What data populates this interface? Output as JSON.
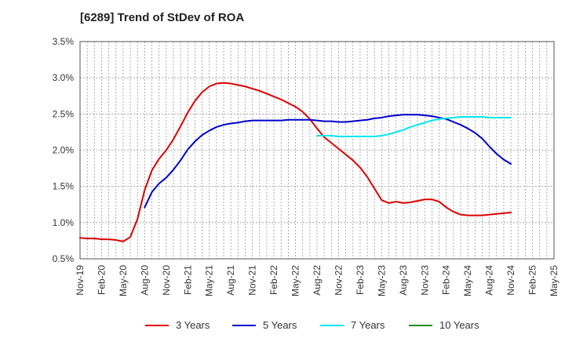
{
  "chart_data": {
    "type": "line",
    "title": "[6289]  Trend of StDev of ROA",
    "xlabel": "",
    "ylabel": "",
    "ylim": [
      0.5,
      3.5
    ],
    "y_ticks": [
      0.5,
      1.0,
      1.5,
      2.0,
      2.5,
      3.0,
      3.5
    ],
    "y_tick_labels": [
      "0.5%",
      "1.0%",
      "1.5%",
      "2.0%",
      "2.5%",
      "3.0%",
      "3.5%"
    ],
    "x_tick_labels": [
      "Nov-19",
      "Feb-20",
      "May-20",
      "Aug-20",
      "Nov-20",
      "Feb-21",
      "May-21",
      "Aug-21",
      "Nov-21",
      "Feb-22",
      "May-22",
      "Aug-22",
      "Nov-22",
      "Feb-23",
      "May-23",
      "Aug-23",
      "Nov-23",
      "Feb-24",
      "May-24",
      "Aug-24",
      "Nov-24",
      "Feb-25",
      "May-25"
    ],
    "grid": true,
    "legend_position": "bottom",
    "series": [
      {
        "name": "3 Years",
        "color": "#dd0000",
        "points": [
          [
            "Nov-19",
            0.79
          ],
          [
            "Dec-19",
            0.78
          ],
          [
            "Jan-20",
            0.78
          ],
          [
            "Feb-20",
            0.77
          ],
          [
            "Mar-20",
            0.77
          ],
          [
            "Apr-20",
            0.76
          ],
          [
            "May-20",
            0.74
          ],
          [
            "Jun-20",
            0.8
          ],
          [
            "Jul-20",
            1.05
          ],
          [
            "Aug-20",
            1.45
          ],
          [
            "Sep-20",
            1.72
          ],
          [
            "Oct-20",
            1.88
          ],
          [
            "Nov-20",
            2.0
          ],
          [
            "Dec-20",
            2.15
          ],
          [
            "Jan-21",
            2.33
          ],
          [
            "Feb-21",
            2.52
          ],
          [
            "Mar-21",
            2.68
          ],
          [
            "Apr-21",
            2.8
          ],
          [
            "May-21",
            2.88
          ],
          [
            "Jun-21",
            2.92
          ],
          [
            "Jul-21",
            2.93
          ],
          [
            "Aug-21",
            2.92
          ],
          [
            "Sep-21",
            2.9
          ],
          [
            "Oct-21",
            2.88
          ],
          [
            "Nov-21",
            2.85
          ],
          [
            "Dec-21",
            2.82
          ],
          [
            "Jan-22",
            2.78
          ],
          [
            "Feb-22",
            2.74
          ],
          [
            "Mar-22",
            2.7
          ],
          [
            "Apr-22",
            2.65
          ],
          [
            "May-22",
            2.6
          ],
          [
            "Jun-22",
            2.53
          ],
          [
            "Jul-22",
            2.43
          ],
          [
            "Aug-22",
            2.3
          ],
          [
            "Sep-22",
            2.18
          ],
          [
            "Oct-22",
            2.1
          ],
          [
            "Nov-22",
            2.02
          ],
          [
            "Dec-22",
            1.94
          ],
          [
            "Jan-23",
            1.86
          ],
          [
            "Feb-23",
            1.76
          ],
          [
            "Mar-23",
            1.63
          ],
          [
            "Apr-23",
            1.47
          ],
          [
            "May-23",
            1.31
          ],
          [
            "Jun-23",
            1.27
          ],
          [
            "Jul-23",
            1.29
          ],
          [
            "Aug-23",
            1.27
          ],
          [
            "Sep-23",
            1.28
          ],
          [
            "Oct-23",
            1.3
          ],
          [
            "Nov-23",
            1.32
          ],
          [
            "Dec-23",
            1.32
          ],
          [
            "Jan-24",
            1.29
          ],
          [
            "Feb-24",
            1.21
          ],
          [
            "Mar-24",
            1.15
          ],
          [
            "Apr-24",
            1.11
          ],
          [
            "May-24",
            1.1
          ],
          [
            "Jun-24",
            1.1
          ],
          [
            "Jul-24",
            1.1
          ],
          [
            "Aug-24",
            1.11
          ],
          [
            "Sep-24",
            1.12
          ],
          [
            "Oct-24",
            1.13
          ],
          [
            "Nov-24",
            1.14
          ]
        ]
      },
      {
        "name": "5 Years",
        "color": "#0000cc",
        "points": [
          [
            "Aug-20",
            1.21
          ],
          [
            "Sep-20",
            1.42
          ],
          [
            "Oct-20",
            1.54
          ],
          [
            "Nov-20",
            1.62
          ],
          [
            "Dec-20",
            1.73
          ],
          [
            "Jan-21",
            1.86
          ],
          [
            "Feb-21",
            2.01
          ],
          [
            "Mar-21",
            2.12
          ],
          [
            "Apr-21",
            2.21
          ],
          [
            "May-21",
            2.27
          ],
          [
            "Jun-21",
            2.32
          ],
          [
            "Jul-21",
            2.35
          ],
          [
            "Aug-21",
            2.37
          ],
          [
            "Sep-21",
            2.38
          ],
          [
            "Oct-21",
            2.4
          ],
          [
            "Nov-21",
            2.41
          ],
          [
            "Dec-21",
            2.41
          ],
          [
            "Jan-22",
            2.41
          ],
          [
            "Feb-22",
            2.41
          ],
          [
            "Mar-22",
            2.41
          ],
          [
            "Apr-22",
            2.42
          ],
          [
            "May-22",
            2.42
          ],
          [
            "Jun-22",
            2.42
          ],
          [
            "Jul-22",
            2.42
          ],
          [
            "Aug-22",
            2.41
          ],
          [
            "Sep-22",
            2.4
          ],
          [
            "Oct-22",
            2.4
          ],
          [
            "Nov-22",
            2.39
          ],
          [
            "Dec-22",
            2.39
          ],
          [
            "Jan-23",
            2.4
          ],
          [
            "Feb-23",
            2.41
          ],
          [
            "Mar-23",
            2.42
          ],
          [
            "Apr-23",
            2.44
          ],
          [
            "May-23",
            2.45
          ],
          [
            "Jun-23",
            2.47
          ],
          [
            "Jul-23",
            2.48
          ],
          [
            "Aug-23",
            2.49
          ],
          [
            "Sep-23",
            2.49
          ],
          [
            "Oct-23",
            2.49
          ],
          [
            "Nov-23",
            2.48
          ],
          [
            "Dec-23",
            2.47
          ],
          [
            "Jan-24",
            2.45
          ],
          [
            "Feb-24",
            2.43
          ],
          [
            "Mar-24",
            2.39
          ],
          [
            "Apr-24",
            2.35
          ],
          [
            "May-24",
            2.3
          ],
          [
            "Jun-24",
            2.24
          ],
          [
            "Jul-24",
            2.16
          ],
          [
            "Aug-24",
            2.05
          ],
          [
            "Sep-24",
            1.95
          ],
          [
            "Oct-24",
            1.87
          ],
          [
            "Nov-24",
            1.81
          ]
        ]
      },
      {
        "name": "7 Years",
        "color": "#00e5ee",
        "points": [
          [
            "Aug-22",
            2.2
          ],
          [
            "Sep-22",
            2.2
          ],
          [
            "Oct-22",
            2.2
          ],
          [
            "Nov-22",
            2.19
          ],
          [
            "Dec-22",
            2.19
          ],
          [
            "Jan-23",
            2.19
          ],
          [
            "Feb-23",
            2.19
          ],
          [
            "Mar-23",
            2.19
          ],
          [
            "Apr-23",
            2.19
          ],
          [
            "May-23",
            2.2
          ],
          [
            "Jun-23",
            2.22
          ],
          [
            "Jul-23",
            2.25
          ],
          [
            "Aug-23",
            2.28
          ],
          [
            "Sep-23",
            2.32
          ],
          [
            "Oct-23",
            2.35
          ],
          [
            "Nov-23",
            2.38
          ],
          [
            "Dec-23",
            2.41
          ],
          [
            "Jan-24",
            2.43
          ],
          [
            "Feb-24",
            2.44
          ],
          [
            "Mar-24",
            2.45
          ],
          [
            "Apr-24",
            2.46
          ],
          [
            "May-24",
            2.46
          ],
          [
            "Jun-24",
            2.46
          ],
          [
            "Jul-24",
            2.46
          ],
          [
            "Aug-24",
            2.45
          ],
          [
            "Sep-24",
            2.45
          ],
          [
            "Oct-24",
            2.45
          ],
          [
            "Nov-24",
            2.45
          ]
        ]
      },
      {
        "name": "10 Years",
        "color": "#228b22",
        "points": []
      }
    ]
  }
}
